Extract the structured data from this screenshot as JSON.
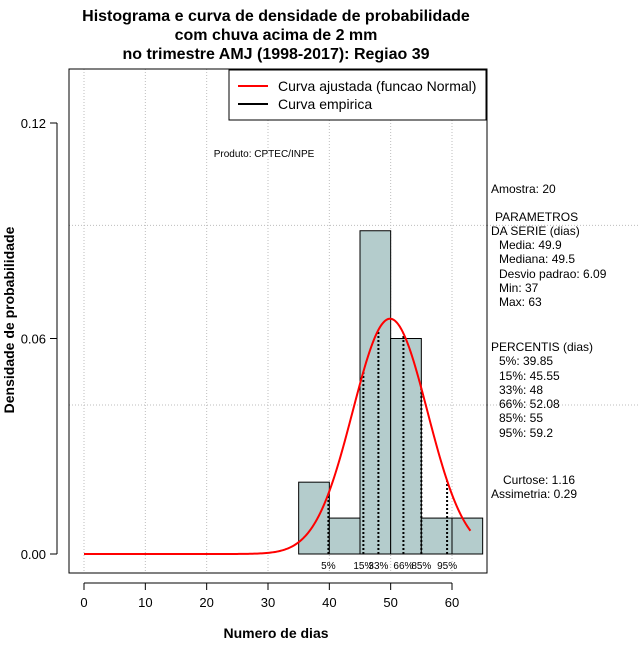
{
  "chart_data": {
    "type": "bar",
    "title_lines": [
      "Histograma e curva de densidade de probabilidade",
      "com chuva acima de 2 mm",
      "no trimestre AMJ (1998-2017): Regiao 39"
    ],
    "xlabel": "Numero de dias",
    "ylabel": "Densidade de probabilidade",
    "xlim": [
      -2.5,
      65
    ],
    "ylim": [
      -0.003,
      0.14
    ],
    "x_ticks": [
      0,
      10,
      20,
      30,
      40,
      50,
      60
    ],
    "y_ticks": [
      0.0,
      0.06,
      0.12
    ],
    "y_tick_labels": [
      "0.00",
      "0.06",
      "0.12"
    ],
    "bins": [
      {
        "x0": 35,
        "x1": 40,
        "density": 0.02
      },
      {
        "x0": 40,
        "x1": 45,
        "density": 0.01
      },
      {
        "x0": 45,
        "x1": 50,
        "density": 0.09
      },
      {
        "x0": 50,
        "x1": 55,
        "density": 0.06
      },
      {
        "x0": 55,
        "x1": 60,
        "density": 0.01
      },
      {
        "x0": 60,
        "x1": 65,
        "density": 0.01
      }
    ],
    "normal_fit": {
      "mean": 49.9,
      "sd": 6.09,
      "x_start": 0,
      "x_end": 63,
      "color": "#ff0000"
    },
    "percentiles": [
      {
        "label": "5%",
        "value": 39.85
      },
      {
        "label": "15%",
        "value": 45.55
      },
      {
        "label": "33%",
        "value": 48
      },
      {
        "label": "66%",
        "value": 52.08
      },
      {
        "label": "85%",
        "value": 55
      },
      {
        "label": "95%",
        "value": 59.2
      }
    ],
    "legend": [
      {
        "label": "Curva ajustada (funcao Normal)",
        "color": "#ff0000"
      },
      {
        "label": "Curva empirica",
        "color": "#000000"
      }
    ],
    "legend_position": "top-right",
    "annotation": "Produto: CPTEC/INPE",
    "bar_color": "#b4cccc",
    "grid": true
  },
  "side_panel": {
    "amostra": "Amostra: 20",
    "parametros_title": "PARAMETROS",
    "parametros_subtitle": "DA SERIE (dias)",
    "media": "Media: 49.9",
    "mediana": "Mediana: 49.5",
    "desvio": "Desvio padrao: 6.09",
    "min": "Min: 37",
    "max": "Max: 63",
    "percentis_title": "PERCENTIS (dias)",
    "p5": "5%: 39.85",
    "p15": "15%: 45.55",
    "p33": "33%: 48",
    "p66": "66%: 52.08",
    "p85": "85%: 55",
    "p95": "95%: 59.2",
    "curtose": "Curtose: 1.16",
    "assimetria": "Assimetria: 0.29"
  }
}
